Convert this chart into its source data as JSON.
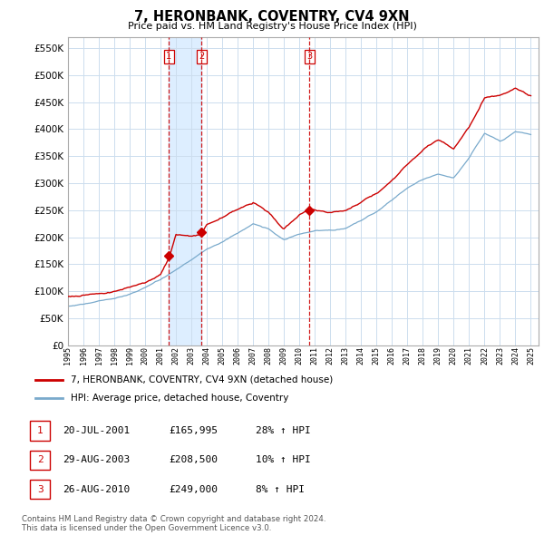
{
  "title": "7, HERONBANK, COVENTRY, CV4 9XN",
  "subtitle": "Price paid vs. HM Land Registry's House Price Index (HPI)",
  "ytick_values": [
    0,
    50000,
    100000,
    150000,
    200000,
    250000,
    300000,
    350000,
    400000,
    450000,
    500000,
    550000
  ],
  "ylim": [
    0,
    570000
  ],
  "xlim_start": 1995.0,
  "xlim_end": 2025.5,
  "sale_dates": [
    2001.54,
    2003.66,
    2010.65
  ],
  "sale_prices": [
    165995,
    208500,
    249000
  ],
  "sale_labels": [
    "1",
    "2",
    "3"
  ],
  "dashed_line_color": "#cc0000",
  "shade_between_1_2": true,
  "legend_entries": [
    "7, HERONBANK, COVENTRY, CV4 9XN (detached house)",
    "HPI: Average price, detached house, Coventry"
  ],
  "table_rows": [
    [
      "1",
      "20-JUL-2001",
      "£165,995",
      "28% ↑ HPI"
    ],
    [
      "2",
      "29-AUG-2003",
      "£208,500",
      "10% ↑ HPI"
    ],
    [
      "3",
      "26-AUG-2010",
      "£249,000",
      "8% ↑ HPI"
    ]
  ],
  "footnote": "Contains HM Land Registry data © Crown copyright and database right 2024.\nThis data is licensed under the Open Government Licence v3.0.",
  "background_color": "#ffffff",
  "plot_bg_color": "#ffffff",
  "grid_color": "#ccddee",
  "red_line_color": "#cc0000",
  "blue_line_color": "#7aaacc",
  "shade_color": "#ddeeff"
}
